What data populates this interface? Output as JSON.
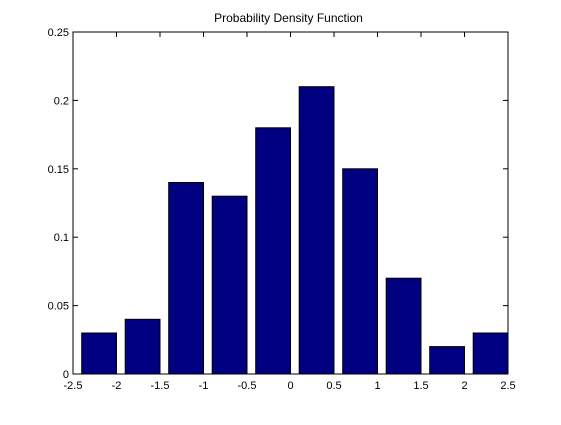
{
  "chart_data": {
    "type": "bar",
    "title": "Probability Density Function",
    "xlabel": "",
    "ylabel": "",
    "xlim": [
      -2.5,
      2.5
    ],
    "ylim": [
      0,
      0.25
    ],
    "x": [
      -2.2,
      -1.7,
      -1.2,
      -0.7,
      -0.2,
      0.3,
      0.8,
      1.3,
      1.8,
      2.3
    ],
    "values": [
      0.03,
      0.04,
      0.14,
      0.13,
      0.18,
      0.21,
      0.15,
      0.07,
      0.02,
      0.03
    ],
    "bar_width": 0.4,
    "bar_color": "#000080",
    "bar_edge_color": "#000000",
    "xticks": [
      -2.5,
      -2,
      -1.5,
      -1,
      -0.5,
      0,
      0.5,
      1,
      1.5,
      2,
      2.5
    ],
    "xtick_labels": [
      "-2.5",
      "-2",
      "-1.5",
      "-1",
      "-0.5",
      "0",
      "0.5",
      "1",
      "1.5",
      "2",
      "2.5"
    ],
    "yticks": [
      0,
      0.05,
      0.1,
      0.15,
      0.2,
      0.25
    ],
    "ytick_labels": [
      "0",
      "0.05",
      "0.1",
      "0.15",
      "0.2",
      "0.25"
    ],
    "grid": false,
    "legend": "none"
  }
}
